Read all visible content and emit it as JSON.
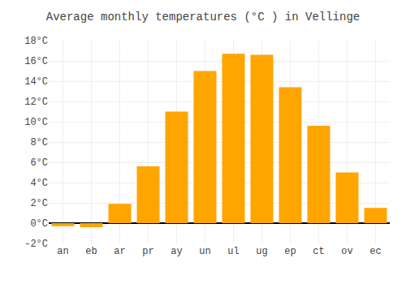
{
  "chart_data": {
    "type": "bar",
    "title": "Average monthly temperatures (°C ) in Vellinge",
    "categories": [
      "an",
      "eb",
      "ar",
      "pr",
      "ay",
      "un",
      "ul",
      "ug",
      "ep",
      "ct",
      "ov",
      "ec"
    ],
    "values": [
      -0.3,
      -0.4,
      1.9,
      5.6,
      11.0,
      15.0,
      16.7,
      16.6,
      13.4,
      9.6,
      5.0,
      1.5
    ],
    "color": "#FFA500",
    "ylim": [
      -2,
      18
    ],
    "yticks": [
      {
        "value": -2,
        "label": "-2°C"
      },
      {
        "value": 0,
        "label": "0°C"
      },
      {
        "value": 2,
        "label": "2°C"
      },
      {
        "value": 4,
        "label": "4°C"
      },
      {
        "value": 6,
        "label": "6°C"
      },
      {
        "value": 8,
        "label": "8°C"
      },
      {
        "value": 10,
        "label": "10°C"
      },
      {
        "value": 12,
        "label": "12°C"
      },
      {
        "value": 14,
        "label": "14°C"
      },
      {
        "value": 16,
        "label": "16°C"
      },
      {
        "value": 18,
        "label": "18°C"
      }
    ],
    "grid": true
  }
}
